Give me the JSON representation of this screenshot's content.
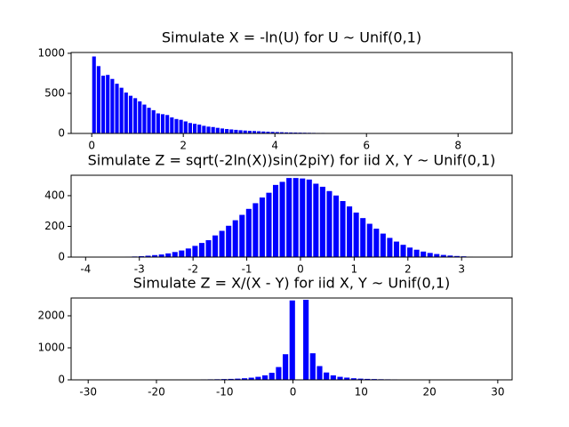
{
  "chart_data": [
    {
      "type": "histogram",
      "title": "Simulate X = -ln(U) for U ~ Unif(0,1)",
      "color": "#0000ff",
      "bins": [
        0,
        0.1,
        0.2,
        0.3,
        0.4,
        0.5,
        0.6,
        0.7,
        0.8,
        0.9,
        1.0,
        1.1,
        1.2,
        1.3,
        1.4,
        1.5,
        1.6,
        1.7,
        1.8,
        1.9,
        2.0,
        2.1,
        2.2,
        2.3,
        2.4,
        2.5,
        2.6,
        2.7,
        2.8,
        2.9,
        3.0,
        3.1,
        3.2,
        3.3,
        3.4,
        3.5,
        3.6,
        3.7,
        3.8,
        3.9,
        4.0,
        4.1,
        4.2,
        4.3,
        4.4,
        4.5,
        4.6,
        4.7,
        4.8,
        4.9,
        5.0,
        5.1,
        5.2,
        5.3,
        5.4,
        5.5,
        5.6,
        5.7,
        5.8,
        5.9,
        6.0,
        6.1,
        6.2,
        6.3,
        6.4,
        6.5,
        6.6,
        6.7,
        6.8,
        6.9,
        7.0,
        7.1,
        7.2,
        7.3,
        7.4,
        7.5,
        7.6,
        7.7,
        7.8,
        7.9,
        8.0,
        8.1,
        8.2,
        8.3,
        8.4,
        8.5,
        8.6,
        8.7
      ],
      "values": [
        960,
        840,
        720,
        730,
        680,
        620,
        570,
        510,
        470,
        440,
        400,
        360,
        320,
        290,
        250,
        240,
        230,
        200,
        180,
        170,
        150,
        130,
        120,
        110,
        95,
        85,
        80,
        70,
        62,
        55,
        50,
        45,
        40,
        36,
        32,
        30,
        27,
        24,
        21,
        19,
        17,
        15,
        13,
        12,
        11,
        10,
        9,
        8,
        7,
        6,
        6,
        5,
        5,
        4,
        4,
        3,
        3,
        3,
        2,
        3,
        2,
        2,
        1,
        1,
        1,
        1,
        0,
        1,
        0,
        0,
        1,
        0,
        0,
        1,
        0,
        0,
        1,
        0,
        0,
        0,
        0,
        0,
        0,
        0,
        0,
        0,
        1
      ],
      "xlim": [
        -0.45,
        9.18
      ],
      "ylim": [
        0,
        1010
      ],
      "xticks": [
        0,
        2,
        4,
        6,
        8
      ],
      "yticks": [
        0,
        500,
        1000
      ]
    },
    {
      "type": "histogram",
      "title": "Simulate Z = sqrt(-2ln(X))sin(2piY) for iid X, Y ~ Unif(0,1)",
      "color": "#0000ff",
      "bins": [
        -3.9,
        -3.775,
        -3.65,
        -3.525,
        -3.4,
        -3.275,
        -3.15,
        -3.025,
        -2.9,
        -2.775,
        -2.65,
        -2.525,
        -2.4,
        -2.275,
        -2.15,
        -2.025,
        -1.9,
        -1.775,
        -1.65,
        -1.525,
        -1.4,
        -1.275,
        -1.15,
        -1.025,
        -0.9,
        -0.775,
        -0.65,
        -0.525,
        -0.4,
        -0.275,
        -0.15,
        -0.025,
        0.1,
        0.225,
        0.35,
        0.475,
        0.6,
        0.725,
        0.85,
        0.975,
        1.1,
        1.225,
        1.35,
        1.475,
        1.6,
        1.725,
        1.85,
        1.975,
        2.1,
        2.225,
        2.35,
        2.475,
        2.6,
        2.725,
        2.85,
        2.975,
        3.1,
        3.225,
        3.35,
        3.475,
        3.6
      ],
      "values": [
        1,
        0,
        1,
        1,
        2,
        3,
        4,
        6,
        9,
        13,
        17,
        24,
        33,
        43,
        56,
        73,
        92,
        110,
        141,
        171,
        204,
        240,
        275,
        314,
        351,
        388,
        419,
        470,
        490,
        515,
        515,
        512,
        505,
        478,
        458,
        430,
        401,
        365,
        330,
        290,
        254,
        217,
        185,
        153,
        125,
        101,
        80,
        62,
        48,
        36,
        27,
        20,
        14,
        10,
        7,
        5,
        3,
        2,
        1,
        1
      ],
      "xlim": [
        -4.27,
        3.94
      ],
      "ylim": [
        0,
        533
      ],
      "xticks": [
        -4,
        -3,
        -2,
        -1,
        0,
        1,
        2,
        3
      ],
      "yticks": [
        0,
        200,
        400
      ]
    },
    {
      "type": "histogram",
      "title": "Simulate Z = X/(X - Y) for iid X, Y ~ Unif(0,1)",
      "color": "#0000ff",
      "bins": [
        -30.6,
        -29.6,
        -28.6,
        -27.6,
        -26.6,
        -25.6,
        -24.6,
        -23.6,
        -22.6,
        -21.6,
        -20.6,
        -19.6,
        -18.6,
        -17.6,
        -16.6,
        -15.6,
        -14.6,
        -13.6,
        -12.6,
        -11.6,
        -10.6,
        -9.6,
        -8.6,
        -7.6,
        -6.6,
        -5.6,
        -4.6,
        -3.6,
        -2.6,
        -1.6,
        -0.6,
        0.4,
        1.4,
        2.4,
        3.4,
        4.4,
        5.4,
        6.4,
        7.4,
        8.4,
        9.4,
        10.4,
        11.4,
        12.4,
        13.4,
        14.4,
        15.4,
        16.4,
        17.4,
        18.4,
        19.4,
        20.4,
        21.4,
        22.4,
        23.4,
        24.4,
        25.4,
        26.4,
        27.4,
        28.4,
        29.4
      ],
      "values": [
        3,
        3,
        3,
        4,
        4,
        4,
        5,
        5,
        6,
        6,
        7,
        8,
        8,
        9,
        10,
        11,
        13,
        15,
        17,
        20,
        25,
        30,
        38,
        50,
        68,
        95,
        140,
        220,
        400,
        800,
        2480,
        0,
        2500,
        830,
        430,
        230,
        140,
        95,
        70,
        50,
        38,
        30,
        25,
        20,
        17,
        15,
        12,
        10,
        9,
        8,
        8,
        7,
        6,
        6,
        5,
        5,
        4,
        4,
        4,
        3
      ],
      "xlim": [
        -32.5,
        32.1
      ],
      "ylim": [
        0,
        2556
      ],
      "xticks": [
        -30,
        -20,
        -10,
        0,
        10,
        20,
        30
      ],
      "yticks": [
        0,
        1000,
        2000
      ]
    }
  ]
}
